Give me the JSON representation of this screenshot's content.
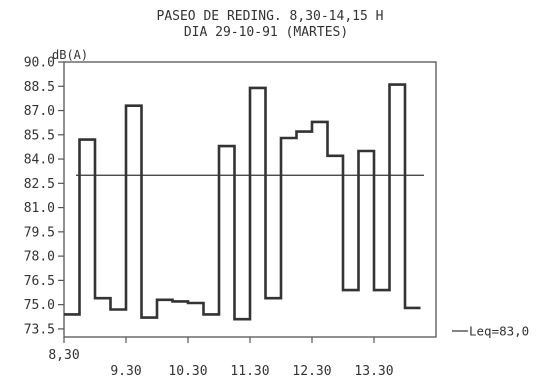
{
  "chart_data": {
    "type": "line",
    "title": "PASEO DE REDING. 8,30-14,15 H",
    "subtitle": "DIA 29-10-91 (MARTES)",
    "ylabel": "dB(A)",
    "xlabel": "",
    "ylim": [
      73.0,
      90.0
    ],
    "yticks": [
      "90.0",
      "88.5",
      "87.0",
      "85.5",
      "84.0",
      "82.5",
      "81.0",
      "79.5",
      "78.0",
      "76.5",
      "75.0",
      "73.5"
    ],
    "xlim": [
      8.5,
      14.5
    ],
    "xticks": [
      {
        "value": 8.5,
        "label": "8,30"
      },
      {
        "value": 9.5,
        "label": "9.30"
      },
      {
        "value": 10.5,
        "label": "10.30"
      },
      {
        "value": 11.5,
        "label": "11.30"
      },
      {
        "value": 12.5,
        "label": "12.30"
      },
      {
        "value": 13.5,
        "label": "13.30"
      }
    ],
    "step_interval_hours": 0.25,
    "series": [
      {
        "start": 8.5,
        "values": [
          74.4,
          85.2,
          75.4,
          74.7,
          87.3,
          74.2,
          75.3,
          75.2,
          75.1,
          74.4,
          84.8,
          74.1,
          88.4,
          75.4,
          85.3,
          85.7,
          86.3,
          84.2,
          75.9,
          84.5,
          75.9,
          88.6,
          74.8
        ]
      }
    ],
    "reference_line": {
      "value": 83.0,
      "label": "Leq=83,0"
    },
    "grid": false,
    "colors": {
      "line": "#333333",
      "frame": "#555555"
    }
  }
}
